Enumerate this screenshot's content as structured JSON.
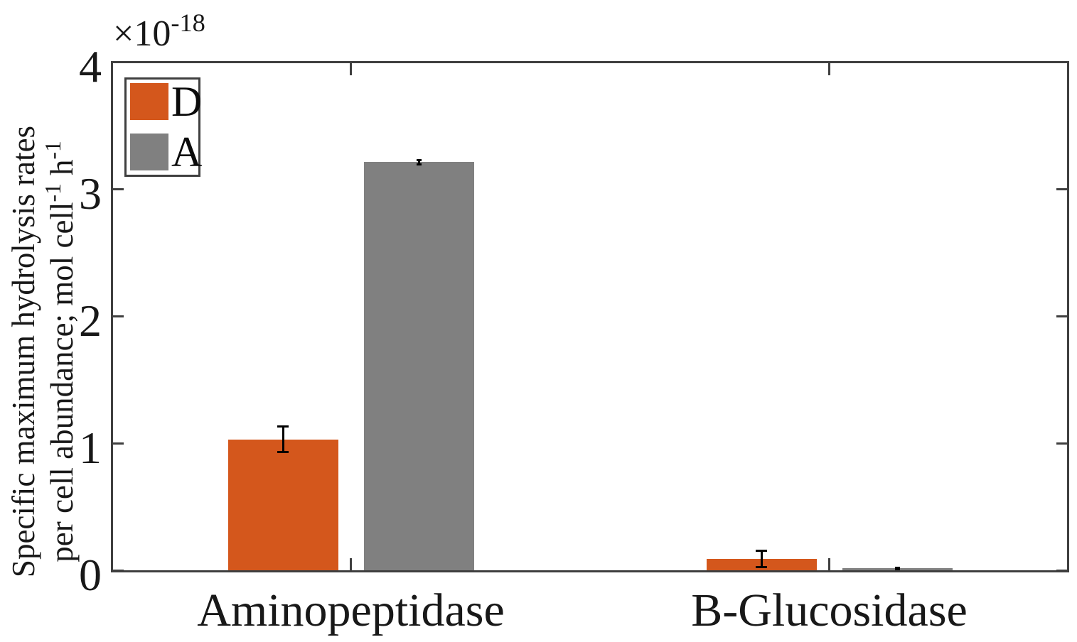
{
  "figure": {
    "background": "#ffffff",
    "axis_color": "#3f3f3f",
    "text_color": "#181818"
  },
  "y_axis": {
    "multiplier_text": "×10⁻¹⁸",
    "multiplier_parts": [
      [
        "×10",
        ""
      ],
      [
        "-18",
        "sup"
      ]
    ],
    "tick_labels": [
      "0",
      "1",
      "2",
      "3",
      "4"
    ],
    "label_line1": "Specific maximum hydrolysis rates",
    "label_line2_parts": [
      [
        "per cell abundance; mol cell",
        ""
      ],
      [
        "-1",
        "sup"
      ],
      [
        " h",
        ""
      ],
      [
        "-1",
        "sup"
      ]
    ],
    "label_text": "Specific maximum hydrolysis rates per cell abundance; mol cell⁻¹ h⁻¹"
  },
  "x_axis": {
    "tick_labels": [
      "Aminopeptidase",
      "B-Glucosidase"
    ]
  },
  "legend": {
    "entries": [
      {
        "label": "D",
        "color": "#d4571c"
      },
      {
        "label": "A",
        "color": "#808080"
      }
    ]
  },
  "chart_data": {
    "type": "bar",
    "categories": [
      "Aminopeptidase",
      "B-Glucosidase"
    ],
    "series": [
      {
        "name": "D",
        "color": "#d4571c",
        "values": [
          1.03e-18,
          9e-20
        ],
        "errors": [
          1e-19,
          6.5e-20
        ]
      },
      {
        "name": "A",
        "color": "#808080",
        "values": [
          3.21e-18,
          1.6e-20
        ],
        "errors": [
          1.5e-20,
          5e-21
        ]
      }
    ],
    "title": "",
    "xlabel": "",
    "ylabel": "Specific maximum hydrolysis rates per cell abundance; mol cell⁻¹ h⁻¹",
    "ylim": [
      0,
      4e-18
    ],
    "ytick_values": [
      0,
      1e-18,
      2e-18,
      3e-18,
      4e-18
    ],
    "y_multiplier": "×10⁻¹⁸",
    "legend_position": "top-left",
    "grid": false
  }
}
